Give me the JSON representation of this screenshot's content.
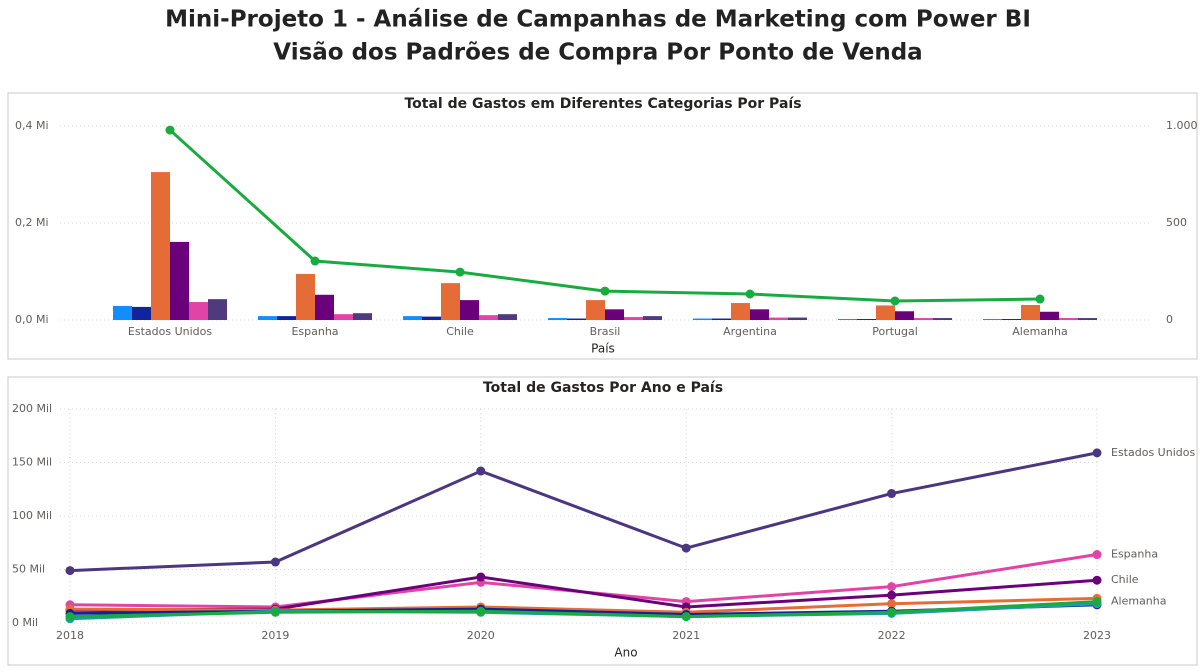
{
  "header": {
    "lines": [
      "Mini-Projeto 1 - Análise de Campanhas de Marketing com Power BI",
      "Visão dos Padrões de Compra Por Ponto de Venda"
    ]
  },
  "chart_data": [
    {
      "type": "combo",
      "title": "Total de Gastos em Diferentes Categorias Por País",
      "x_label": "País",
      "categories": [
        "Estados Unidos",
        "Espanha",
        "Chile",
        "Brasil",
        "Argentina",
        "Portugal",
        "Alemanha"
      ],
      "series": [
        {
          "type": "bar",
          "color": "#118dff",
          "values": [
            29000,
            8000,
            8000,
            4000,
            3000,
            2000,
            2000
          ]
        },
        {
          "type": "bar",
          "color": "#12239e",
          "values": [
            27000,
            8000,
            7000,
            3000,
            3000,
            2000,
            2000
          ]
        },
        {
          "type": "bar",
          "color": "#e66c37",
          "values": [
            305000,
            95000,
            76000,
            41000,
            35000,
            30000,
            31000
          ]
        },
        {
          "type": "bar",
          "color": "#6b007b",
          "values": [
            161000,
            52000,
            41000,
            22000,
            22000,
            18000,
            17000
          ]
        },
        {
          "type": "bar",
          "color": "#e044a7",
          "values": [
            37000,
            12000,
            10000,
            6000,
            5000,
            4000,
            4000
          ]
        },
        {
          "type": "bar",
          "color": "#4f3a7e",
          "values": [
            43000,
            14000,
            12000,
            8000,
            5000,
            4000,
            4000
          ]
        },
        {
          "type": "line",
          "axis": "y2",
          "color": "#1aab40",
          "values": [
            979,
            304,
            247,
            149,
            134,
            98,
            108
          ]
        }
      ],
      "ylim": [
        0,
        400000
      ],
      "yticks": [
        {
          "value": 0,
          "label": "0,0 Mi"
        },
        {
          "value": 200000,
          "label": "0,2 Mi"
        },
        {
          "value": 400000,
          "label": "0,4 Mi"
        }
      ],
      "y2lim": [
        0,
        1000
      ],
      "y2ticks": [
        0,
        500,
        {
          "value": 1000,
          "label": "1.000"
        }
      ],
      "grid": true
    },
    {
      "type": "line",
      "title": "Total de Gastos Por Ano e País",
      "x_label": "Ano",
      "x": [
        2018,
        2019,
        2020,
        2021,
        2022,
        2023
      ],
      "xlim": [
        2018,
        2023
      ],
      "xticks": [
        2018,
        2019,
        2020,
        2021,
        2022,
        2023
      ],
      "series": [
        {
          "name": "Estados Unidos",
          "color": "#4b3682",
          "values": [
            49000,
            57000,
            142000,
            70000,
            121000,
            159000
          ]
        },
        {
          "name": "Espanha",
          "color": "#e044a7",
          "values": [
            17000,
            15000,
            38000,
            20000,
            34000,
            64000
          ]
        },
        {
          "name": "Chile",
          "color": "#6b007b",
          "values": [
            12000,
            13000,
            43000,
            15000,
            26000,
            40000
          ]
        },
        {
          "color": "#e66c37",
          "values": [
            13000,
            12000,
            15000,
            10000,
            18000,
            23000
          ]
        },
        {
          "color": "#12239e",
          "values": [
            9000,
            11000,
            13000,
            8000,
            11000,
            17000
          ]
        },
        {
          "color": "#1f9bb0",
          "values": [
            4000,
            11000,
            10000,
            6000,
            9000,
            18000
          ]
        },
        {
          "name": "Alemanha",
          "color": "#1aab40",
          "values": [
            6000,
            10000,
            11000,
            6000,
            10000,
            20000
          ]
        }
      ],
      "ylim": [
        0,
        200000
      ],
      "yticks": [
        {
          "value": 0,
          "label": "0 Mil"
        },
        {
          "value": 50000,
          "label": "50 Mil"
        },
        {
          "value": 100000,
          "label": "100 Mil"
        },
        {
          "value": 150000,
          "label": "150 Mil"
        },
        {
          "value": 200000,
          "label": "200 Mil"
        }
      ],
      "grid": true
    }
  ]
}
